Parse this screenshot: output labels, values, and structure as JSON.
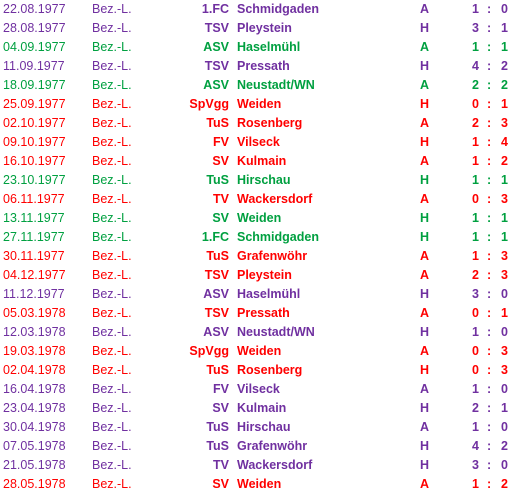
{
  "colors": {
    "win": "#00a040",
    "draw": "#7030a0",
    "loss": "#ff0000"
  },
  "matches": [
    {
      "date": "22.08.1977",
      "league": "Bez.-L.",
      "prefix": "1.FC",
      "team": "Schmidgaden",
      "venue": "A",
      "goals_for": "1",
      "separator": ":",
      "goals_against": "0",
      "result": "draw"
    },
    {
      "date": "28.08.1977",
      "league": "Bez.-L.",
      "prefix": "TSV",
      "team": "Pleystein",
      "venue": "H",
      "goals_for": "3",
      "separator": ":",
      "goals_against": "1",
      "result": "draw"
    },
    {
      "date": "04.09.1977",
      "league": "Bez.-L.",
      "prefix": "ASV",
      "team": "Haselmühl",
      "venue": "A",
      "goals_for": "1",
      "separator": ":",
      "goals_against": "1",
      "result": "win"
    },
    {
      "date": "11.09.1977",
      "league": "Bez.-L.",
      "prefix": "TSV",
      "team": "Pressath",
      "venue": "H",
      "goals_for": "4",
      "separator": ":",
      "goals_against": "2",
      "result": "draw"
    },
    {
      "date": "18.09.1977",
      "league": "Bez.-L.",
      "prefix": "ASV",
      "team": "Neustadt/WN",
      "venue": "A",
      "goals_for": "2",
      "separator": ":",
      "goals_against": "2",
      "result": "win"
    },
    {
      "date": "25.09.1977",
      "league": "Bez.-L.",
      "prefix": "SpVgg",
      "team": "Weiden",
      "venue": "H",
      "goals_for": "0",
      "separator": ":",
      "goals_against": "1",
      "result": "loss"
    },
    {
      "date": "02.10.1977",
      "league": "Bez.-L.",
      "prefix": "TuS",
      "team": "Rosenberg",
      "venue": "A",
      "goals_for": "2",
      "separator": ":",
      "goals_against": "3",
      "result": "loss"
    },
    {
      "date": "09.10.1977",
      "league": "Bez.-L.",
      "prefix": "FV",
      "team": "Vilseck",
      "venue": "H",
      "goals_for": "1",
      "separator": ":",
      "goals_against": "4",
      "result": "loss"
    },
    {
      "date": "16.10.1977",
      "league": "Bez.-L.",
      "prefix": "SV",
      "team": "Kulmain",
      "venue": "A",
      "goals_for": "1",
      "separator": ":",
      "goals_against": "2",
      "result": "loss"
    },
    {
      "date": "23.10.1977",
      "league": "Bez.-L.",
      "prefix": "TuS",
      "team": "Hirschau",
      "venue": "H",
      "goals_for": "1",
      "separator": ":",
      "goals_against": "1",
      "result": "win"
    },
    {
      "date": "06.11.1977",
      "league": "Bez.-L.",
      "prefix": "TV",
      "team": "Wackersdorf",
      "venue": "A",
      "goals_for": "0",
      "separator": ":",
      "goals_against": "3",
      "result": "loss"
    },
    {
      "date": "13.11.1977",
      "league": "Bez.-L.",
      "prefix": "SV",
      "team": "Weiden",
      "venue": "H",
      "goals_for": "1",
      "separator": ":",
      "goals_against": "1",
      "result": "win"
    },
    {
      "date": "27.11.1977",
      "league": "Bez.-L.",
      "prefix": "1.FC",
      "team": "Schmidgaden",
      "venue": "H",
      "goals_for": "1",
      "separator": ":",
      "goals_against": "1",
      "result": "win"
    },
    {
      "date": "30.11.1977",
      "league": "Bez.-L.",
      "prefix": "TuS",
      "team": "Grafenwöhr",
      "venue": "A",
      "goals_for": "1",
      "separator": ":",
      "goals_against": "3",
      "result": "loss"
    },
    {
      "date": "04.12.1977",
      "league": "Bez.-L.",
      "prefix": "TSV",
      "team": "Pleystein",
      "venue": "A",
      "goals_for": "2",
      "separator": ":",
      "goals_against": "3",
      "result": "loss"
    },
    {
      "date": "11.12.1977",
      "league": "Bez.-L.",
      "prefix": "ASV",
      "team": "Haselmühl",
      "venue": "H",
      "goals_for": "3",
      "separator": ":",
      "goals_against": "0",
      "result": "draw"
    },
    {
      "date": "05.03.1978",
      "league": "Bez.-L.",
      "prefix": "TSV",
      "team": "Pressath",
      "venue": "A",
      "goals_for": "0",
      "separator": ":",
      "goals_against": "1",
      "result": "loss"
    },
    {
      "date": "12.03.1978",
      "league": "Bez.-L.",
      "prefix": "ASV",
      "team": "Neustadt/WN",
      "venue": "H",
      "goals_for": "1",
      "separator": ":",
      "goals_against": "0",
      "result": "draw"
    },
    {
      "date": "19.03.1978",
      "league": "Bez.-L.",
      "prefix": "SpVgg",
      "team": "Weiden",
      "venue": "A",
      "goals_for": "0",
      "separator": ":",
      "goals_against": "3",
      "result": "loss"
    },
    {
      "date": "02.04.1978",
      "league": "Bez.-L.",
      "prefix": "TuS",
      "team": "Rosenberg",
      "venue": "H",
      "goals_for": "0",
      "separator": ":",
      "goals_against": "3",
      "result": "loss"
    },
    {
      "date": "16.04.1978",
      "league": "Bez.-L.",
      "prefix": "FV",
      "team": "Vilseck",
      "venue": "A",
      "goals_for": "1",
      "separator": ":",
      "goals_against": "0",
      "result": "draw"
    },
    {
      "date": "23.04.1978",
      "league": "Bez.-L.",
      "prefix": "SV",
      "team": "Kulmain",
      "venue": "H",
      "goals_for": "2",
      "separator": ":",
      "goals_against": "1",
      "result": "draw"
    },
    {
      "date": "30.04.1978",
      "league": "Bez.-L.",
      "prefix": "TuS",
      "team": "Hirschau",
      "venue": "A",
      "goals_for": "1",
      "separator": ":",
      "goals_against": "0",
      "result": "draw"
    },
    {
      "date": "07.05.1978",
      "league": "Bez.-L.",
      "prefix": "TuS",
      "team": "Grafenwöhr",
      "venue": "H",
      "goals_for": "4",
      "separator": ":",
      "goals_against": "2",
      "result": "draw"
    },
    {
      "date": "21.05.1978",
      "league": "Bez.-L.",
      "prefix": "TV",
      "team": "Wackersdorf",
      "venue": "H",
      "goals_for": "3",
      "separator": ":",
      "goals_against": "0",
      "result": "draw"
    },
    {
      "date": "28.05.1978",
      "league": "Bez.-L.",
      "prefix": "SV",
      "team": "Weiden",
      "venue": "A",
      "goals_for": "1",
      "separator": ":",
      "goals_against": "2",
      "result": "loss"
    }
  ]
}
